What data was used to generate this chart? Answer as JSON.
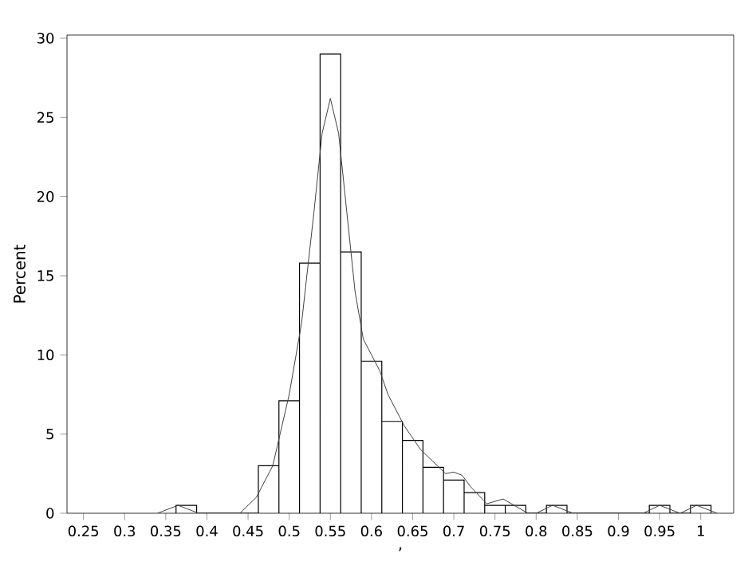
{
  "chart_data": {
    "type": "histogram",
    "xlabel": ",",
    "ylabel": "Percent",
    "xlim": [
      0.23,
      1.04
    ],
    "ylim": [
      0,
      30.2
    ],
    "xticks": [
      0.25,
      0.3,
      0.35,
      0.4,
      0.45,
      0.5,
      0.55,
      0.6,
      0.65,
      0.7,
      0.75,
      0.8,
      0.85,
      0.9,
      0.95,
      1
    ],
    "yticks": [
      0,
      5,
      10,
      15,
      20,
      25,
      30
    ],
    "grid": false,
    "series": [
      {
        "color": "#000000",
        "bins": [
          0.3625,
          0.3875,
          0.4125,
          0.4375,
          0.4625,
          0.4875,
          0.5125,
          0.5375,
          0.5625,
          0.5875,
          0.6125,
          0.6375,
          0.6625,
          0.6875,
          0.7125,
          0.7375,
          0.7625,
          0.7875,
          0.8125,
          0.8375,
          0.8625,
          0.8875,
          0.9125,
          0.9375,
          0.9625,
          0.9875,
          1.0125
        ],
        "values": [
          0.5,
          0,
          0,
          0,
          3,
          7.1,
          15.8,
          29,
          16.5,
          9.6,
          5.8,
          4.6,
          2.9,
          2.1,
          1.3,
          0.5,
          0.5,
          0,
          0.5,
          0,
          0,
          0,
          0,
          0.5,
          0,
          0.5
        ]
      },
      {
        "type": "line",
        "color": "#404040",
        "x": [
          0.34,
          0.365,
          0.39,
          0.44,
          0.46,
          0.48,
          0.5,
          0.515,
          0.53,
          0.54,
          0.55,
          0.56,
          0.57,
          0.58,
          0.59,
          0.6,
          0.61,
          0.62,
          0.64,
          0.66,
          0.68,
          0.69,
          0.7,
          0.71,
          0.72,
          0.74,
          0.76,
          0.78,
          0.79,
          0.8,
          0.82,
          0.845,
          0.93,
          0.95,
          0.975,
          0.995,
          1.02
        ],
        "values": [
          0,
          0.5,
          0,
          0,
          1,
          3,
          7.5,
          12,
          19,
          24,
          26.2,
          24,
          19,
          14,
          11,
          10,
          9,
          7.5,
          5.5,
          4,
          3,
          2.5,
          2.6,
          2.4,
          1.7,
          0.6,
          0.9,
          0.3,
          0,
          0,
          0.5,
          0,
          0,
          0.5,
          0,
          0.5,
          0
        ]
      }
    ]
  }
}
